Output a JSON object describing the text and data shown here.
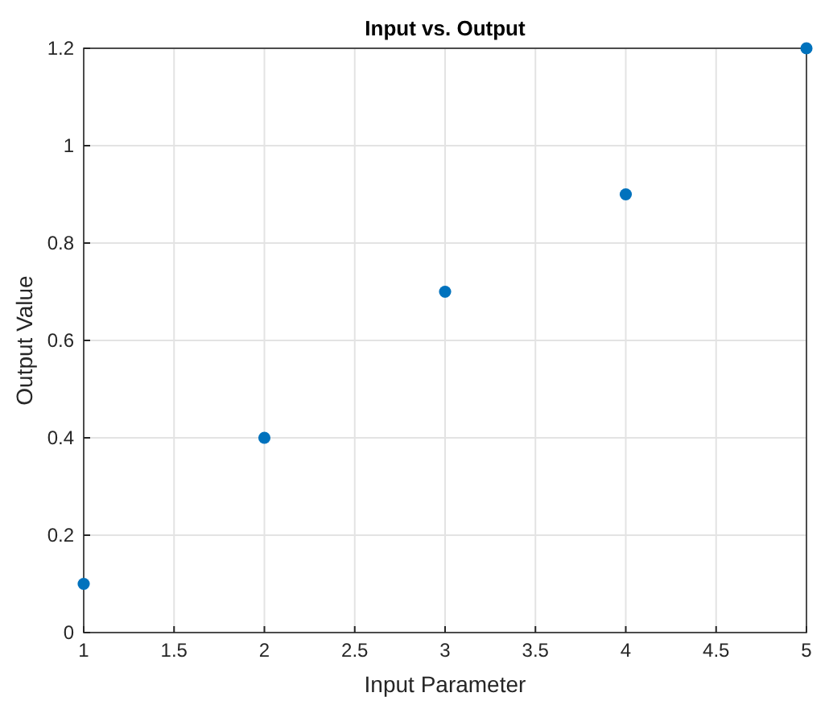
{
  "chart_data": {
    "type": "scatter",
    "title": "Input vs. Output",
    "xlabel": "Input Parameter",
    "ylabel": "Output Value",
    "x": [
      1,
      2,
      3,
      4,
      5
    ],
    "series": [
      {
        "color": "#0072bd",
        "values": [
          0.1,
          0.4,
          0.7,
          0.9,
          1.2
        ]
      }
    ],
    "xlim": [
      1,
      5
    ],
    "ylim": [
      0,
      1.2
    ],
    "xticks": [
      1,
      1.5,
      2,
      2.5,
      3,
      3.5,
      4,
      4.5,
      5
    ],
    "yticks": [
      0,
      0.2,
      0.4,
      0.6,
      0.8,
      1,
      1.2
    ],
    "grid": true,
    "marker": "circle"
  }
}
